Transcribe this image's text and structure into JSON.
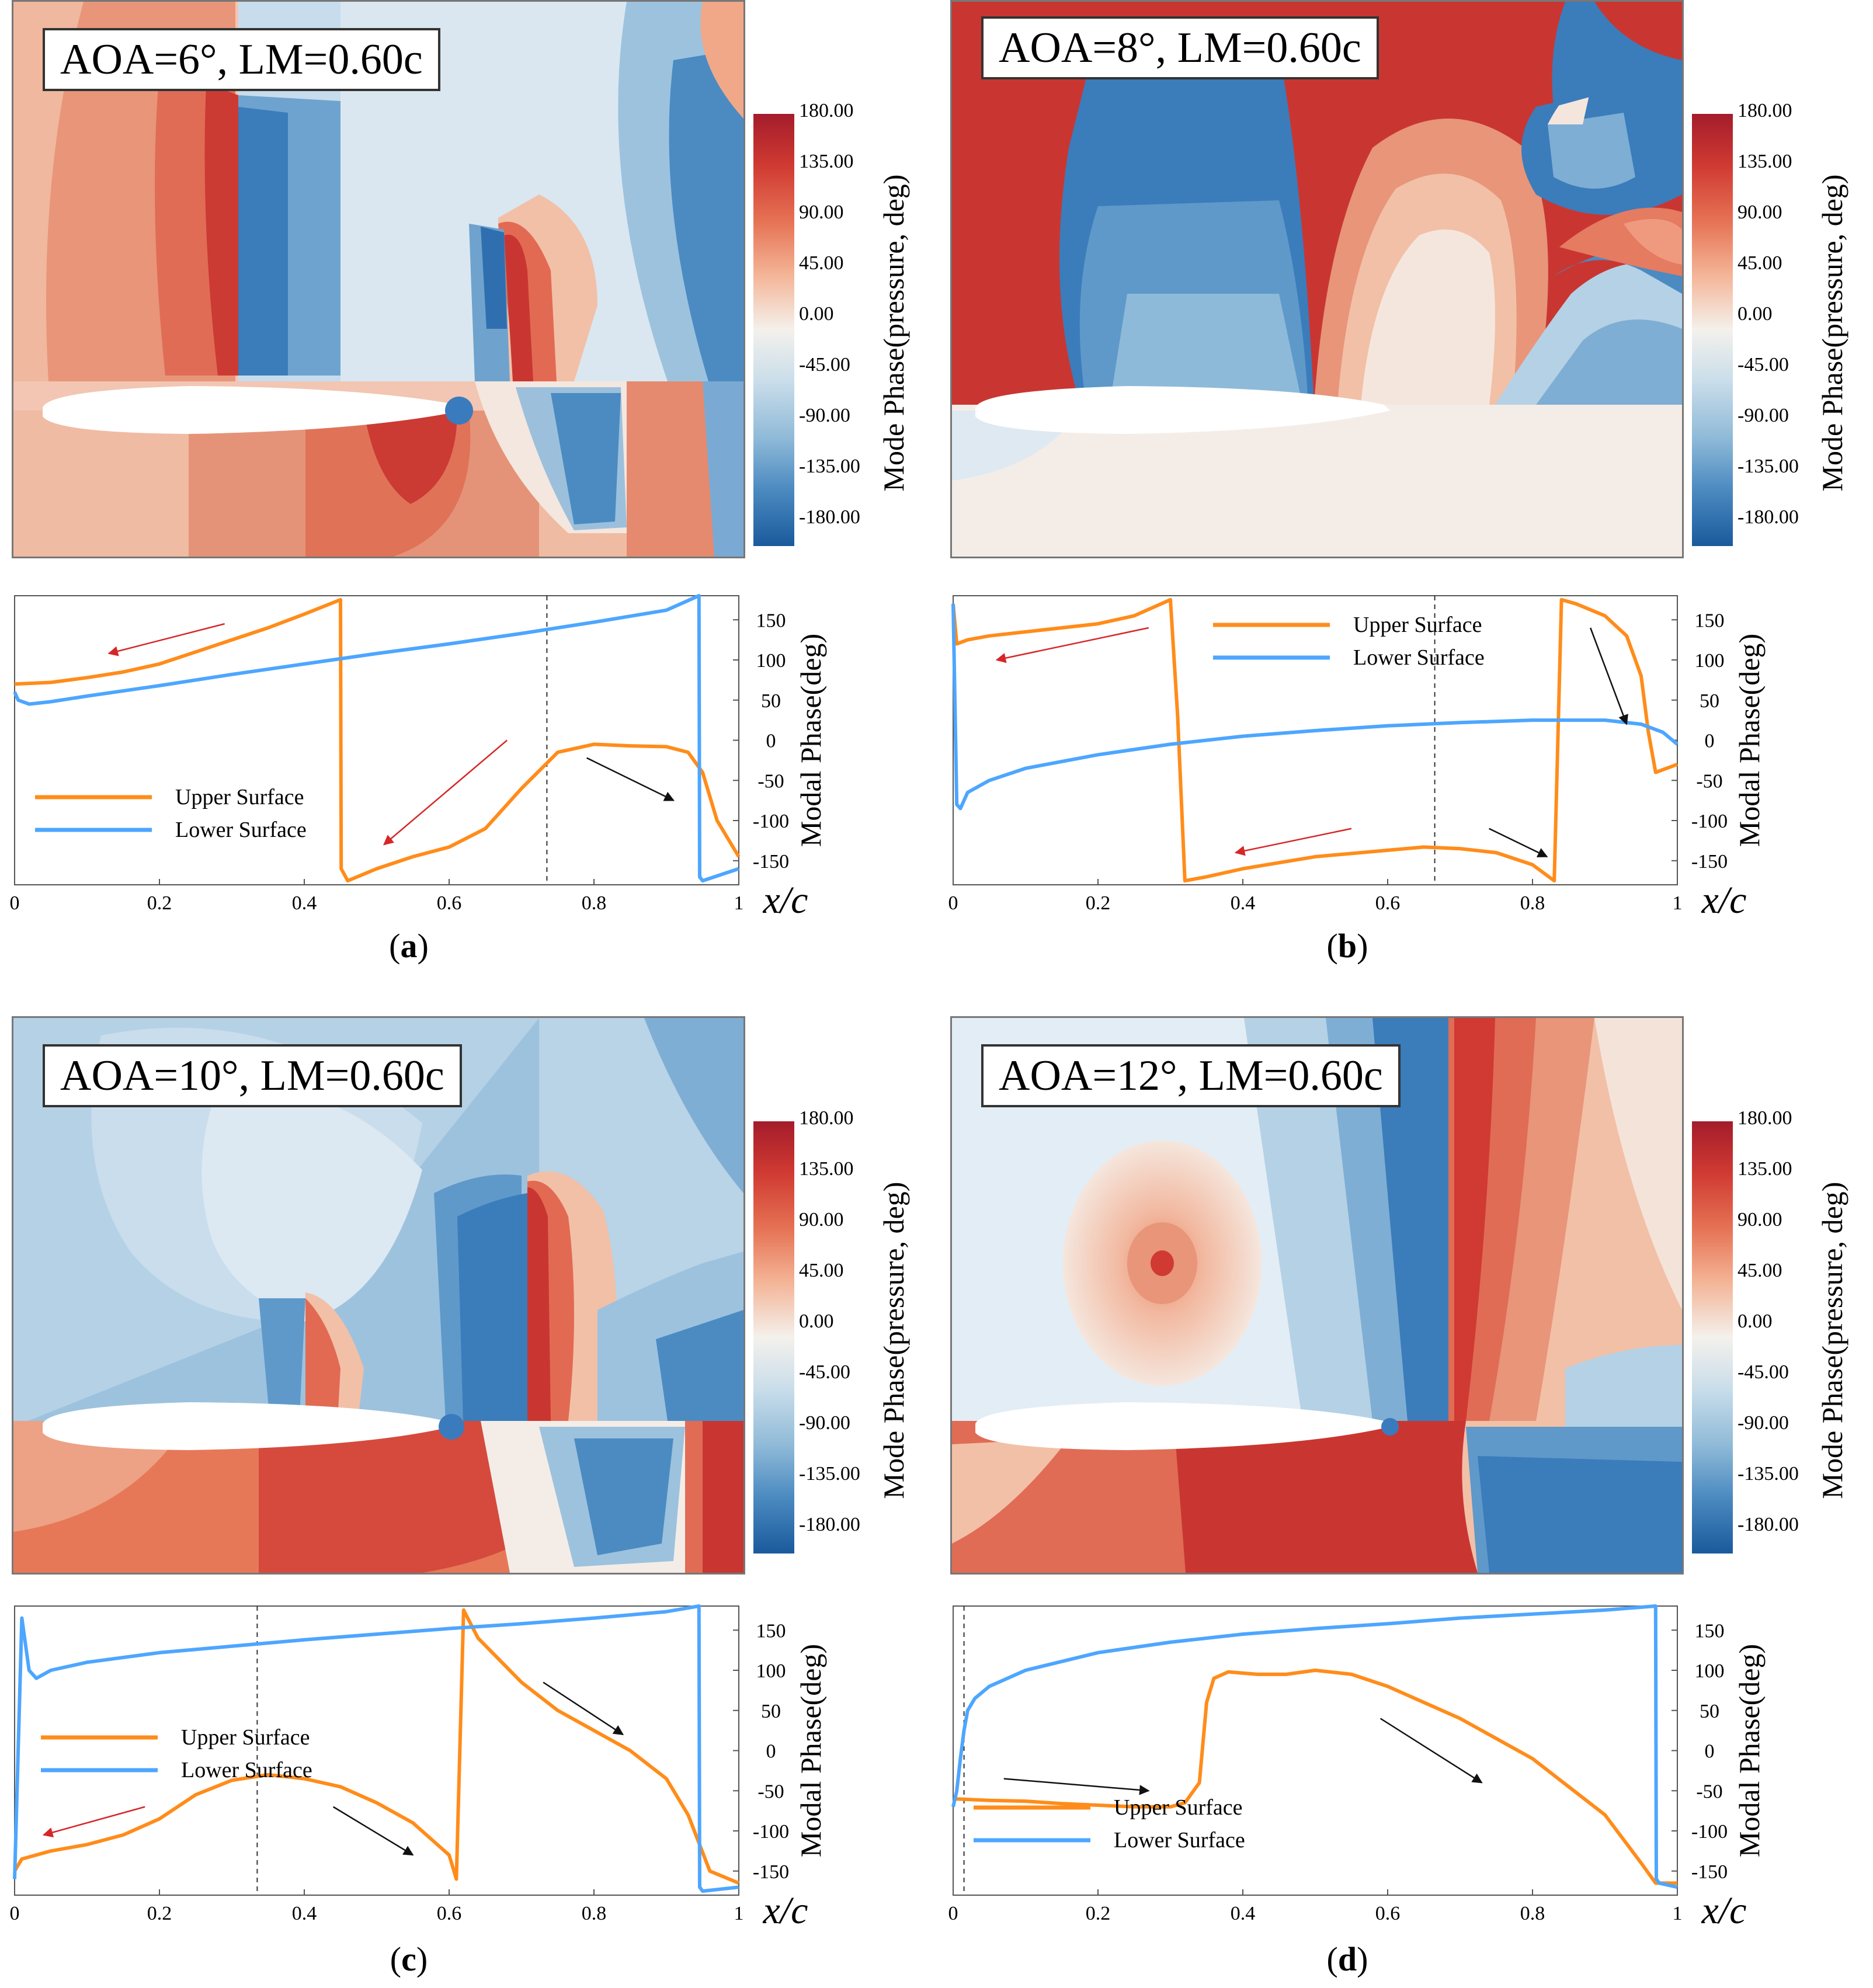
{
  "chart_data": [
    {
      "type": "line",
      "caption": "a",
      "contour_label": "AOA=6°, LM=0.60c",
      "colorbar_title": "Mode Phase(pressure, deg)",
      "colorbar_ticks": [
        "180.00",
        "135.00",
        "90.00",
        "45.00",
        "0.00",
        "-45.00",
        "-90.00",
        "-135.00",
        "-180.00"
      ],
      "xlabel": "x/c",
      "ylabel": "Modal Phase(deg)",
      "xlim": [
        0,
        1
      ],
      "ylim": [
        -180,
        180
      ],
      "xticks": [
        "0",
        "0.2",
        "0.4",
        "0.6",
        "0.8",
        "1"
      ],
      "yticks": [
        "150",
        "100",
        "50",
        "0",
        "-50",
        "-100",
        "-150"
      ],
      "legend_position": "bottom-left",
      "dashed_x": 0.735,
      "series": [
        {
          "name": "Upper Surface",
          "color": "#ff8c1a",
          "points": [
            [
              0,
              70
            ],
            [
              0.05,
              72
            ],
            [
              0.1,
              78
            ],
            [
              0.15,
              85
            ],
            [
              0.2,
              95
            ],
            [
              0.25,
              110
            ],
            [
              0.3,
              125
            ],
            [
              0.35,
              140
            ],
            [
              0.4,
              157
            ],
            [
              0.45,
              175
            ],
            [
              0.451,
              -160
            ],
            [
              0.46,
              -175
            ],
            [
              0.5,
              -160
            ],
            [
              0.55,
              -145
            ],
            [
              0.6,
              -133
            ],
            [
              0.65,
              -110
            ],
            [
              0.7,
              -60
            ],
            [
              0.75,
              -15
            ],
            [
              0.8,
              -5
            ],
            [
              0.85,
              -7
            ],
            [
              0.9,
              -8
            ],
            [
              0.93,
              -15
            ],
            [
              0.95,
              -40
            ],
            [
              0.97,
              -100
            ],
            [
              1,
              -145
            ]
          ]
        },
        {
          "name": "Lower Surface",
          "color": "#4da6ff",
          "points": [
            [
              0,
              60
            ],
            [
              0.005,
              50
            ],
            [
              0.02,
              45
            ],
            [
              0.05,
              48
            ],
            [
              0.1,
              55
            ],
            [
              0.2,
              68
            ],
            [
              0.3,
              82
            ],
            [
              0.4,
              95
            ],
            [
              0.5,
              108
            ],
            [
              0.6,
              120
            ],
            [
              0.7,
              133
            ],
            [
              0.8,
              147
            ],
            [
              0.9,
              162
            ],
            [
              0.945,
              180
            ],
            [
              0.946,
              -170
            ],
            [
              0.95,
              -175
            ],
            [
              1,
              -160
            ]
          ]
        }
      ],
      "arrows": [
        {
          "color": "#d62728",
          "from": [
            0.29,
            145
          ],
          "to": [
            0.13,
            108
          ]
        },
        {
          "color": "#d62728",
          "from": [
            0.68,
            0
          ],
          "to": [
            0.51,
            -130
          ]
        },
        {
          "color": "#111111",
          "from": [
            0.79,
            -22
          ],
          "to": [
            0.91,
            -75
          ]
        }
      ]
    },
    {
      "type": "line",
      "caption": "b",
      "contour_label": "AOA=8°, LM=0.60c",
      "colorbar_title": "Mode Phase(pressure, deg)",
      "colorbar_ticks": [
        "180.00",
        "135.00",
        "90.00",
        "45.00",
        "0.00",
        "-45.00",
        "-90.00",
        "-135.00",
        "-180.00"
      ],
      "xlabel": "x/c",
      "ylabel": "Modal Phase(deg)",
      "xlim": [
        0,
        1
      ],
      "ylim": [
        -180,
        180
      ],
      "xticks": [
        "0",
        "0.2",
        "0.4",
        "0.6",
        "0.8",
        "1"
      ],
      "yticks": [
        "150",
        "100",
        "50",
        "0",
        "-50",
        "-100",
        "-150"
      ],
      "legend_position": "top-center",
      "dashed_x": 0.665,
      "series": [
        {
          "name": "Upper Surface",
          "color": "#ff8c1a",
          "points": [
            [
              0,
              170
            ],
            [
              0.005,
              120
            ],
            [
              0.02,
              125
            ],
            [
              0.05,
              130
            ],
            [
              0.1,
              135
            ],
            [
              0.15,
              140
            ],
            [
              0.2,
              145
            ],
            [
              0.25,
              155
            ],
            [
              0.3,
              175
            ],
            [
              0.31,
              30
            ],
            [
              0.32,
              -175
            ],
            [
              0.35,
              -170
            ],
            [
              0.4,
              -160
            ],
            [
              0.5,
              -145
            ],
            [
              0.6,
              -137
            ],
            [
              0.65,
              -133
            ],
            [
              0.7,
              -135
            ],
            [
              0.75,
              -140
            ],
            [
              0.8,
              -155
            ],
            [
              0.83,
              -175
            ],
            [
              0.84,
              175
            ],
            [
              0.86,
              170
            ],
            [
              0.9,
              155
            ],
            [
              0.93,
              130
            ],
            [
              0.95,
              80
            ],
            [
              0.96,
              10
            ],
            [
              0.97,
              -40
            ],
            [
              1,
              -30
            ]
          ]
        },
        {
          "name": "Lower Surface",
          "color": "#4da6ff",
          "points": [
            [
              0,
              170
            ],
            [
              0.005,
              -80
            ],
            [
              0.01,
              -85
            ],
            [
              0.02,
              -65
            ],
            [
              0.05,
              -50
            ],
            [
              0.1,
              -35
            ],
            [
              0.2,
              -18
            ],
            [
              0.3,
              -5
            ],
            [
              0.4,
              5
            ],
            [
              0.5,
              12
            ],
            [
              0.6,
              18
            ],
            [
              0.7,
              22
            ],
            [
              0.8,
              25
            ],
            [
              0.9,
              25
            ],
            [
              0.95,
              20
            ],
            [
              0.98,
              10
            ],
            [
              1,
              -5
            ]
          ]
        }
      ],
      "arrows": [
        {
          "color": "#d62728",
          "from": [
            0.27,
            140
          ],
          "to": [
            0.06,
            100
          ]
        },
        {
          "color": "#d62728",
          "from": [
            0.55,
            -110
          ],
          "to": [
            0.39,
            -140
          ]
        },
        {
          "color": "#111111",
          "from": [
            0.74,
            -110
          ],
          "to": [
            0.82,
            -145
          ]
        },
        {
          "color": "#111111",
          "from": [
            0.88,
            140
          ],
          "to": [
            0.93,
            20
          ]
        }
      ]
    },
    {
      "type": "line",
      "caption": "c",
      "contour_label": "AOA=10°, LM=0.60c",
      "colorbar_title": "Mode Phase(pressure, deg)",
      "colorbar_ticks": [
        "180.00",
        "135.00",
        "90.00",
        "45.00",
        "0.00",
        "-45.00",
        "-90.00",
        "-135.00",
        "-180.00"
      ],
      "xlabel": "x/c",
      "ylabel": "Modal Phase(deg)",
      "xlim": [
        0,
        1
      ],
      "ylim": [
        -180,
        180
      ],
      "xticks": [
        "0",
        "0.2",
        "0.4",
        "0.6",
        "0.8",
        "1"
      ],
      "yticks": [
        "150",
        "100",
        "50",
        "0",
        "-50",
        "-100",
        "-150"
      ],
      "legend_position": "middle-left",
      "dashed_x": 0.335,
      "series": [
        {
          "name": "Upper Surface",
          "color": "#ff8c1a",
          "points": [
            [
              0,
              -150
            ],
            [
              0.01,
              -135
            ],
            [
              0.05,
              -125
            ],
            [
              0.1,
              -117
            ],
            [
              0.15,
              -105
            ],
            [
              0.2,
              -85
            ],
            [
              0.25,
              -55
            ],
            [
              0.3,
              -37
            ],
            [
              0.35,
              -30
            ],
            [
              0.4,
              -35
            ],
            [
              0.45,
              -45
            ],
            [
              0.5,
              -65
            ],
            [
              0.55,
              -90
            ],
            [
              0.6,
              -130
            ],
            [
              0.61,
              -160
            ],
            [
              0.62,
              175
            ],
            [
              0.64,
              140
            ],
            [
              0.7,
              85
            ],
            [
              0.75,
              50
            ],
            [
              0.8,
              25
            ],
            [
              0.85,
              0
            ],
            [
              0.9,
              -35
            ],
            [
              0.93,
              -80
            ],
            [
              0.96,
              -150
            ],
            [
              1,
              -165
            ]
          ]
        },
        {
          "name": "Lower Surface",
          "color": "#4da6ff",
          "points": [
            [
              0,
              -160
            ],
            [
              0.01,
              165
            ],
            [
              0.02,
              100
            ],
            [
              0.03,
              90
            ],
            [
              0.05,
              100
            ],
            [
              0.1,
              110
            ],
            [
              0.2,
              122
            ],
            [
              0.3,
              130
            ],
            [
              0.4,
              138
            ],
            [
              0.5,
              145
            ],
            [
              0.6,
              152
            ],
            [
              0.7,
              158
            ],
            [
              0.8,
              165
            ],
            [
              0.9,
              173
            ],
            [
              0.945,
              180
            ],
            [
              0.946,
              -170
            ],
            [
              0.95,
              -175
            ],
            [
              1,
              -170
            ]
          ]
        }
      ],
      "arrows": [
        {
          "color": "#d62728",
          "from": [
            0.18,
            -70
          ],
          "to": [
            0.04,
            -105
          ]
        },
        {
          "color": "#111111",
          "from": [
            0.44,
            -70
          ],
          "to": [
            0.55,
            -130
          ]
        },
        {
          "color": "#111111",
          "from": [
            0.73,
            85
          ],
          "to": [
            0.84,
            20
          ]
        }
      ]
    },
    {
      "type": "line",
      "caption": "d",
      "contour_label": "AOA=12°, LM=0.60c",
      "colorbar_title": "Mode Phase(pressure, deg)",
      "colorbar_ticks": [
        "180.00",
        "135.00",
        "90.00",
        "45.00",
        "0.00",
        "-45.00",
        "-90.00",
        "-135.00",
        "-180.00"
      ],
      "xlabel": "x/c",
      "ylabel": "Modal Phase(deg)",
      "xlim": [
        0,
        1
      ],
      "ylim": [
        -180,
        180
      ],
      "xticks": [
        "0",
        "0.2",
        "0.4",
        "0.6",
        "0.8",
        "1"
      ],
      "yticks": [
        "150",
        "100",
        "50",
        "0",
        "-50",
        "-100",
        "-150"
      ],
      "legend_position": "bottom-left",
      "dashed_x": 0.015,
      "series": [
        {
          "name": "Upper Surface",
          "color": "#ff8c1a",
          "points": [
            [
              0,
              -60
            ],
            [
              0.05,
              -62
            ],
            [
              0.1,
              -63
            ],
            [
              0.15,
              -66
            ],
            [
              0.2,
              -68
            ],
            [
              0.25,
              -70
            ],
            [
              0.3,
              -70
            ],
            [
              0.32,
              -65
            ],
            [
              0.34,
              -40
            ],
            [
              0.35,
              60
            ],
            [
              0.36,
              90
            ],
            [
              0.38,
              98
            ],
            [
              0.42,
              95
            ],
            [
              0.46,
              95
            ],
            [
              0.5,
              100
            ],
            [
              0.55,
              95
            ],
            [
              0.6,
              80
            ],
            [
              0.7,
              40
            ],
            [
              0.8,
              -10
            ],
            [
              0.9,
              -80
            ],
            [
              0.95,
              -140
            ],
            [
              0.97,
              -165
            ],
            [
              1,
              -165
            ]
          ]
        },
        {
          "name": "Lower Surface",
          "color": "#4da6ff",
          "points": [
            [
              0,
              -70
            ],
            [
              0.005,
              -50
            ],
            [
              0.01,
              -10
            ],
            [
              0.015,
              25
            ],
            [
              0.02,
              50
            ],
            [
              0.03,
              65
            ],
            [
              0.05,
              80
            ],
            [
              0.1,
              100
            ],
            [
              0.2,
              122
            ],
            [
              0.3,
              135
            ],
            [
              0.4,
              145
            ],
            [
              0.5,
              152
            ],
            [
              0.6,
              158
            ],
            [
              0.7,
              165
            ],
            [
              0.8,
              170
            ],
            [
              0.9,
              175
            ],
            [
              0.97,
              180
            ],
            [
              0.971,
              -160
            ],
            [
              0.975,
              -165
            ],
            [
              1,
              -170
            ]
          ]
        }
      ],
      "arrows": [
        {
          "color": "#111111",
          "from": [
            0.07,
            -35
          ],
          "to": [
            0.27,
            -50
          ]
        },
        {
          "color": "#111111",
          "from": [
            0.59,
            40
          ],
          "to": [
            0.73,
            -40
          ]
        }
      ]
    }
  ]
}
